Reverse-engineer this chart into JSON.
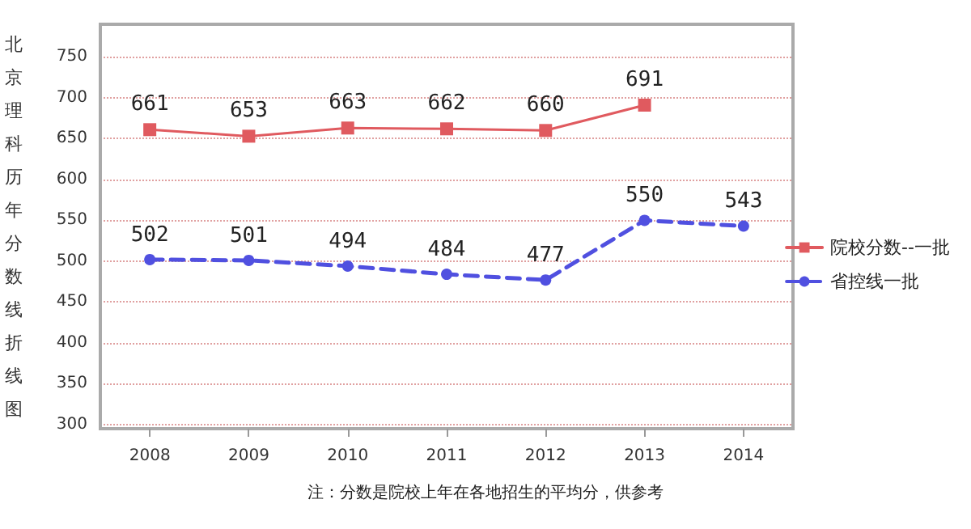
{
  "chart_data": {
    "type": "line",
    "ylabel": "北京理科历年分数线折线图",
    "categories": [
      "2008",
      "2009",
      "2010",
      "2011",
      "2012",
      "2013",
      "2014"
    ],
    "series": [
      {
        "name": "院校分数--一批",
        "color": "#e05a5f",
        "values": [
          661,
          653,
          663,
          662,
          660,
          691,
          null
        ],
        "marker": "square",
        "line_style": "solid"
      },
      {
        "name": "省控线一批",
        "color": "#5050e0",
        "values": [
          502,
          501,
          494,
          484,
          477,
          550,
          543
        ],
        "marker": "circle",
        "line_style": "dashed"
      }
    ],
    "ylim": [
      295,
      790
    ],
    "yticks": [
      300,
      350,
      400,
      450,
      500,
      550,
      600,
      650,
      700,
      750
    ],
    "grid": "y",
    "legend": "right",
    "data_labels": true,
    "annotations": [
      "注：分数是院校上年在各地招生的平均分，供参考"
    ]
  }
}
